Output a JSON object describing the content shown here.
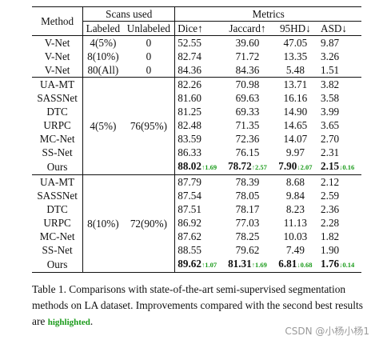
{
  "table": {
    "header": {
      "method": "Method",
      "scans_used": "Scans used",
      "metrics": "Metrics",
      "labeled": "Labeled",
      "unlabeled": "Unlabeled",
      "dice": "Dice↑",
      "jaccard": "Jaccard↑",
      "hd95": "95HD↓",
      "asd": "ASD↓"
    },
    "group1": [
      {
        "method": "V-Net",
        "labeled": "4(5%)",
        "unlabeled": "0",
        "dice": "52.55",
        "jaccard": "39.60",
        "hd95": "47.05",
        "asd": "9.87"
      },
      {
        "method": "V-Net",
        "labeled": "8(10%)",
        "unlabeled": "0",
        "dice": "82.74",
        "jaccard": "71.72",
        "hd95": "13.35",
        "asd": "3.26"
      },
      {
        "method": "V-Net",
        "labeled": "80(All)",
        "unlabeled": "0",
        "dice": "84.36",
        "jaccard": "84.36",
        "hd95": "5.48",
        "asd": "1.51"
      }
    ],
    "group2": {
      "labeled": "4(5%)",
      "unlabeled": "76(95%)",
      "rows": [
        {
          "method": "UA-MT",
          "dice": "82.26",
          "jaccard": "70.98",
          "hd95": "13.71",
          "asd": "3.82"
        },
        {
          "method": "SASSNet",
          "dice": "81.60",
          "jaccard": "69.63",
          "hd95": "16.16",
          "asd": "3.58"
        },
        {
          "method": "DTC",
          "dice": "81.25",
          "jaccard": "69.33",
          "hd95": "14.90",
          "asd": "3.99"
        },
        {
          "method": "URPC",
          "dice": "82.48",
          "jaccard": "71.35",
          "hd95": "14.65",
          "asd": "3.65"
        },
        {
          "method": "MC-Net",
          "dice": "83.59",
          "jaccard": "72.36",
          "hd95": "14.07",
          "asd": "2.70"
        },
        {
          "method": "SS-Net",
          "dice": "86.33",
          "jaccard": "76.15",
          "hd95": "9.97",
          "asd": "2.31"
        }
      ],
      "ours": {
        "method": "Ours",
        "dice": "88.02",
        "dice_imp": "↑1.69",
        "jaccard": "78.72",
        "jaccard_imp": "↑2.57",
        "hd95": "7.90",
        "hd95_imp": "↓2.07",
        "asd": "2.15",
        "asd_imp": "↓0.16"
      }
    },
    "group3": {
      "labeled": "8(10%)",
      "unlabeled": "72(90%)",
      "rows": [
        {
          "method": "UA-MT",
          "dice": "87.79",
          "jaccard": "78.39",
          "hd95": "8.68",
          "asd": "2.12"
        },
        {
          "method": "SASSNet",
          "dice": "87.54",
          "jaccard": "78.05",
          "hd95": "9.84",
          "asd": "2.59"
        },
        {
          "method": "DTC",
          "dice": "87.51",
          "jaccard": "78.17",
          "hd95": "8.23",
          "asd": "2.36"
        },
        {
          "method": "URPC",
          "dice": "86.92",
          "jaccard": "77.03",
          "hd95": "11.13",
          "asd": "2.28"
        },
        {
          "method": "MC-Net",
          "dice": "87.62",
          "jaccard": "78.25",
          "hd95": "10.03",
          "asd": "1.82"
        },
        {
          "method": "SS-Net",
          "dice": "88.55",
          "jaccard": "79.62",
          "hd95": "7.49",
          "asd": "1.90"
        }
      ],
      "ours": {
        "method": "Ours",
        "dice": "89.62",
        "dice_imp": "↑1.07",
        "jaccard": "81.31",
        "jaccard_imp": "↑1.69",
        "hd95": "6.81",
        "hd95_imp": "↓0.68",
        "asd": "1.76",
        "asd_imp": "↓0.14"
      }
    }
  },
  "caption": {
    "text": "Table 1. Comparisons with state-of-the-art semi-supervised segmentation methods on LA dataset. Improvements compared with the second best results are",
    "highlight": "highlighted",
    "end": "."
  },
  "watermark": "CSDN @小杨小杨1",
  "colors": {
    "improvement": "#1a9b1a",
    "text": "#111111",
    "watermark": "#9a9a9a"
  }
}
